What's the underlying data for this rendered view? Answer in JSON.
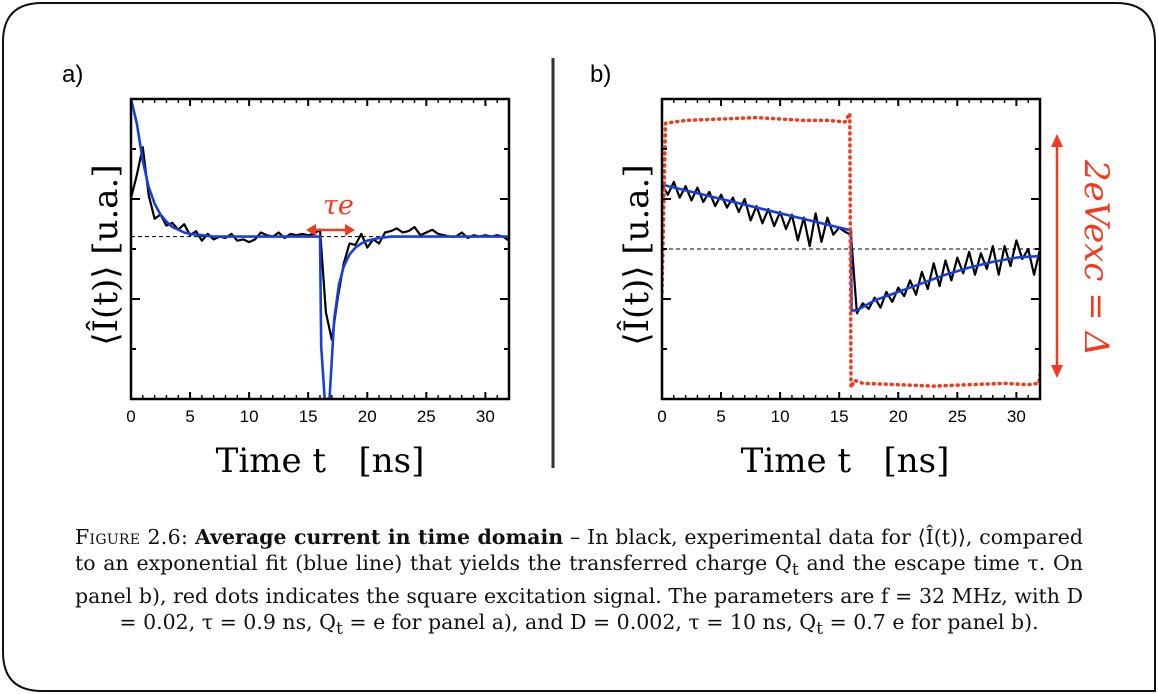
{
  "chart_data": [
    {
      "panel_label": "a)",
      "type": "line",
      "ylabel": "⟨Î(t)⟩   [u.a.]",
      "xlabel": "Time t   [ns]",
      "xlim": [
        0,
        32
      ],
      "x_ticks": [
        "0",
        "5",
        "10",
        "15",
        "20",
        "25",
        "30"
      ],
      "ylim": [
        -1.18,
        1.0
      ],
      "baseline": 0,
      "annotation": "τe",
      "series": [
        {
          "color": "#000000",
          "style": "solid",
          "x": [
            0,
            0.5,
            1,
            1.5,
            2,
            2.5,
            3,
            3.5,
            4,
            4.5,
            5,
            5.5,
            6,
            6.5,
            7,
            7.5,
            8,
            8.5,
            9,
            9.5,
            10,
            10.5,
            11,
            11.5,
            12,
            12.5,
            13,
            13.5,
            14,
            14.5,
            15,
            15.5,
            16,
            16.5,
            17,
            17.5,
            18,
            18.5,
            19,
            19.5,
            20,
            20.5,
            21,
            21.5,
            22,
            22.5,
            23,
            23.5,
            24,
            24.5,
            25,
            25.5,
            26,
            26.5,
            27,
            27.5,
            28,
            28.5,
            29,
            29.5,
            30,
            30.5,
            31,
            31.5,
            32
          ],
          "y": [
            0.28,
            0.45,
            0.65,
            0.3,
            0.13,
            0.16,
            0.08,
            0.1,
            0.05,
            0.09,
            0.01,
            0.04,
            -0.03,
            0.02,
            -0.02,
            0.0,
            -0.01,
            0.02,
            -0.03,
            -0.02,
            -0.04,
            -0.02,
            0.03,
            0.01,
            0.0,
            0.03,
            -0.01,
            0.02,
            0.01,
            0.02,
            0.01,
            0.02,
            0.05,
            -0.55,
            -0.75,
            -0.45,
            -0.2,
            -0.05,
            -0.06,
            0.02,
            -0.08,
            -0.02,
            -0.05,
            0.03,
            0.04,
            0.06,
            0.03,
            0.04,
            0.07,
            0.01,
            0.03,
            0.05,
            0.02,
            0.01,
            0.0,
            0.0,
            0.03,
            -0.01,
            0.01,
            0.0,
            0.01,
            0.0,
            0.01,
            0.0,
            -0.03
          ]
        },
        {
          "color": "#1a3fd8",
          "style": "solid",
          "x": [
            0,
            0.5,
            1,
            1.5,
            2,
            2.5,
            3,
            3.5,
            4,
            4.5,
            5,
            6,
            7,
            8,
            10,
            12,
            14,
            15.5,
            16,
            16.1,
            16.4,
            16.8,
            17.2,
            17.6,
            18,
            18.5,
            19,
            19.5,
            20,
            21,
            22,
            23,
            25,
            28,
            32
          ],
          "y": [
            1.0,
            0.82,
            0.55,
            0.36,
            0.24,
            0.16,
            0.11,
            0.07,
            0.05,
            0.03,
            0.02,
            0.01,
            0.0,
            0.0,
            0.0,
            0.0,
            0.0,
            0.0,
            0.0,
            -0.8,
            -1.18,
            -1.18,
            -0.6,
            -0.35,
            -0.22,
            -0.13,
            -0.08,
            -0.05,
            -0.03,
            -0.01,
            0.0,
            0.0,
            0.0,
            0.0,
            0.0
          ]
        }
      ]
    },
    {
      "panel_label": "b)",
      "type": "line",
      "ylabel": "⟨Î(t)⟩   [u.a.]",
      "xlabel": "Time t   [ns]",
      "xlim": [
        0,
        32
      ],
      "x_ticks": [
        "0",
        "5",
        "10",
        "15",
        "20",
        "25",
        "30"
      ],
      "ylim": [
        -1.05,
        1.05
      ],
      "baseline": 0,
      "annotation": "2eVexc = Δ",
      "series": [
        {
          "color": "#000000",
          "style": "solid",
          "x": [
            0,
            0.5,
            1,
            1.5,
            2,
            2.5,
            3,
            3.5,
            4,
            4.5,
            5,
            5.5,
            6,
            6.5,
            7,
            7.5,
            8,
            8.5,
            9,
            9.5,
            10,
            10.5,
            11,
            11.5,
            12,
            12.5,
            13,
            13.5,
            14,
            14.5,
            15,
            15.5,
            16,
            16.5,
            17,
            17.5,
            18,
            18.5,
            19,
            19.5,
            20,
            20.5,
            21,
            21.5,
            22,
            22.5,
            23,
            23.5,
            24,
            24.5,
            25,
            25.5,
            26,
            26.5,
            27,
            27.5,
            28,
            28.5,
            29,
            29.5,
            30,
            30.5,
            31,
            31.5,
            32
          ],
          "y": [
            0.45,
            0.38,
            0.47,
            0.36,
            0.44,
            0.34,
            0.43,
            0.33,
            0.4,
            0.3,
            0.38,
            0.29,
            0.36,
            0.26,
            0.35,
            0.2,
            0.3,
            0.18,
            0.28,
            0.16,
            0.26,
            0.14,
            0.24,
            0.06,
            0.22,
            0.02,
            0.25,
            0.05,
            0.22,
            0.1,
            0.15,
            0.12,
            0.1,
            -0.45,
            -0.38,
            -0.42,
            -0.34,
            -0.41,
            -0.3,
            -0.37,
            -0.27,
            -0.33,
            -0.22,
            -0.32,
            -0.16,
            -0.28,
            -0.1,
            -0.26,
            -0.08,
            -0.22,
            -0.06,
            -0.17,
            -0.02,
            -0.18,
            -0.03,
            -0.14,
            0.02,
            -0.18,
            0.02,
            -0.12,
            0.06,
            -0.07,
            0.0,
            -0.18,
            0.0
          ]
        },
        {
          "color": "#1a3fd8",
          "style": "solid",
          "x": [
            0,
            16,
            16.05,
            16.5,
            18,
            20,
            22,
            24,
            26,
            28,
            30,
            32
          ],
          "y": [
            0.45,
            0.13,
            -0.43,
            -0.43,
            -0.36,
            -0.3,
            -0.24,
            -0.18,
            -0.13,
            -0.09,
            -0.06,
            -0.05
          ]
        },
        {
          "color": "#f23a1f",
          "style": "dotted",
          "x": [
            0,
            0.3,
            2,
            5,
            8,
            10,
            12,
            14,
            15.5,
            15.9,
            16.0,
            16.3,
            17,
            20,
            23,
            26,
            29,
            31,
            31.9,
            32
          ],
          "y": [
            -0.3,
            0.88,
            0.9,
            0.91,
            0.92,
            0.91,
            0.9,
            0.9,
            0.89,
            0.95,
            -0.97,
            -0.92,
            -0.94,
            -0.95,
            -0.96,
            -0.95,
            -0.94,
            -0.95,
            -0.94,
            -0.88
          ]
        }
      ]
    }
  ],
  "caption": {
    "figure": "Figure 2.6:",
    "title": "Average current in time domain",
    "dash": " – ",
    "body_1": "In black, experimental data for ⟨Î(t)⟩, compared to an exponential fit (blue line) that yields the transferred charge Q",
    "sub_t_1": "t",
    "body_2": " and the escape time τ.  On panel b), red dots indicates the square excitation signal.  The parameters are f = 32 MHz, with D = 0.02, τ = 0.9 ns, Q",
    "sub_t_2": "t",
    "body_3": " = e for panel a), and D = 0.002, τ = 10 ns, Q",
    "sub_t_3": "t",
    "body_4": " = 0.7 e for panel b)."
  },
  "colors": {
    "frame": "#111111",
    "fit": "#1a3fd8",
    "excitation": "#f23a1f",
    "data": "#000000"
  }
}
